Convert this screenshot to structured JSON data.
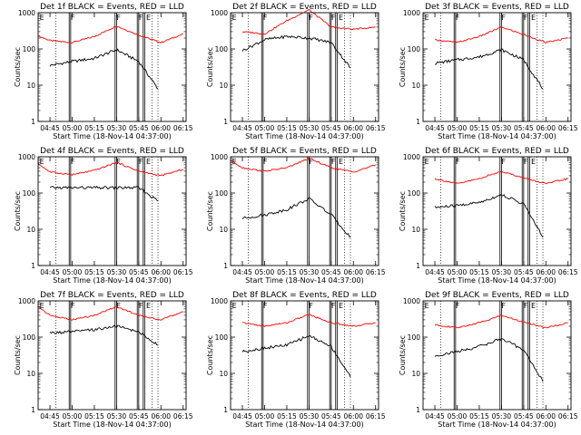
{
  "chart_data": [
    {
      "type": "line",
      "title": "Det 1f BLACK = Events, RED = LLD",
      "xlabel": "Start Time (18-Nov-14 04:37:00)",
      "ylabel": "Counts/sec",
      "ylim": [
        1,
        1000
      ],
      "yscale": "log",
      "xticks": [
        "04:45",
        "05:00",
        "05:15",
        "05:30",
        "05:45",
        "06:00",
        "06:15"
      ],
      "yticks": [
        "1",
        "10",
        "100",
        "1000"
      ],
      "segment_labels": [
        "E",
        "F",
        "F",
        "F",
        "E"
      ],
      "grid": false,
      "series": [
        {
          "color": "#ff0000",
          "values": [
            {
              "t": "04:37",
              "v": 230
            },
            {
              "t": "04:45",
              "v": 170
            },
            {
              "t": "05:00",
              "v": 150
            },
            {
              "t": "05:15",
              "v": 220
            },
            {
              "t": "05:30",
              "v": 430
            },
            {
              "t": "05:45",
              "v": 240
            },
            {
              "t": "06:00",
              "v": 150
            },
            {
              "t": "06:15",
              "v": 260
            }
          ]
        },
        {
          "color": "#000000",
          "values": [
            {
              "t": "04:45",
              "v": 35
            },
            {
              "t": "05:00",
              "v": 45
            },
            {
              "t": "05:15",
              "v": 55
            },
            {
              "t": "05:30",
              "v": 95
            },
            {
              "t": "05:45",
              "v": 45
            },
            {
              "t": "05:58",
              "v": 8
            }
          ]
        }
      ]
    },
    {
      "type": "line",
      "title": "Det 2f BLACK = Events, RED = LLD",
      "xlabel": "Start Time (18-Nov-14 04:37:00)",
      "ylabel": "Counts/sec",
      "ylim": [
        1,
        1000
      ],
      "yscale": "log",
      "xticks": [
        "04:45",
        "05:00",
        "05:15",
        "05:30",
        "05:45",
        "06:00",
        "06:15"
      ],
      "yticks": [
        "1",
        "10",
        "100",
        "1000"
      ],
      "segment_labels": [
        "E",
        "F",
        "F",
        "F",
        "E"
      ],
      "grid": false,
      "series": [
        {
          "color": "#ff0000",
          "values": [
            {
              "t": "04:45",
              "v": 300
            },
            {
              "t": "05:00",
              "v": 260
            },
            {
              "t": "05:15",
              "v": 600
            },
            {
              "t": "05:30",
              "v": 1200
            },
            {
              "t": "05:45",
              "v": 400
            },
            {
              "t": "06:00",
              "v": 350
            },
            {
              "t": "06:15",
              "v": 400
            }
          ]
        },
        {
          "color": "#000000",
          "values": [
            {
              "t": "04:45",
              "v": 90
            },
            {
              "t": "05:00",
              "v": 180
            },
            {
              "t": "05:15",
              "v": 220
            },
            {
              "t": "05:30",
              "v": 200
            },
            {
              "t": "05:45",
              "v": 150
            },
            {
              "t": "05:58",
              "v": 30
            }
          ]
        }
      ]
    },
    {
      "type": "line",
      "title": "Det 3f BLACK = Events, RED = LLD",
      "xlabel": "Start Time (18-Nov-14 04:37:00)",
      "ylabel": "Counts/sec",
      "ylim": [
        1,
        1000
      ],
      "yscale": "log",
      "xticks": [
        "04:45",
        "05:00",
        "05:15",
        "05:30",
        "05:45",
        "06:00",
        "06:15"
      ],
      "yticks": [
        "1",
        "10",
        "100",
        "1000"
      ],
      "segment_labels": [
        "E",
        "F",
        "F",
        "F",
        "E"
      ],
      "grid": false,
      "series": [
        {
          "color": "#ff0000",
          "values": [
            {
              "t": "04:45",
              "v": 180
            },
            {
              "t": "05:00",
              "v": 150
            },
            {
              "t": "05:15",
              "v": 220
            },
            {
              "t": "05:30",
              "v": 400
            },
            {
              "t": "05:45",
              "v": 250
            },
            {
              "t": "06:00",
              "v": 150
            },
            {
              "t": "06:15",
              "v": 200
            }
          ]
        },
        {
          "color": "#000000",
          "values": [
            {
              "t": "04:45",
              "v": 40
            },
            {
              "t": "05:00",
              "v": 50
            },
            {
              "t": "05:15",
              "v": 60
            },
            {
              "t": "05:30",
              "v": 95
            },
            {
              "t": "05:45",
              "v": 50
            },
            {
              "t": "05:58",
              "v": 8
            }
          ]
        }
      ]
    },
    {
      "type": "line",
      "title": "Det 4f BLACK = Events, RED = LLD",
      "xlabel": "Start Time (18-Nov-14 04:37:00)",
      "ylabel": "Counts/sec",
      "ylim": [
        1,
        1000
      ],
      "yscale": "log",
      "xticks": [
        "04:45",
        "05:00",
        "05:15",
        "05:30",
        "05:45",
        "06:00",
        "06:15"
      ],
      "yticks": [
        "1",
        "10",
        "100",
        "1000"
      ],
      "segment_labels": [
        "E",
        "F",
        "F",
        "F",
        "E"
      ],
      "grid": false,
      "series": [
        {
          "color": "#ff0000",
          "values": [
            {
              "t": "04:37",
              "v": 650
            },
            {
              "t": "04:45",
              "v": 380
            },
            {
              "t": "05:00",
              "v": 320
            },
            {
              "t": "05:15",
              "v": 420
            },
            {
              "t": "05:30",
              "v": 700
            },
            {
              "t": "05:45",
              "v": 400
            },
            {
              "t": "06:00",
              "v": 300
            },
            {
              "t": "06:15",
              "v": 450
            }
          ]
        },
        {
          "color": "#000000",
          "values": [
            {
              "t": "04:45",
              "v": 140
            },
            {
              "t": "05:00",
              "v": 140
            },
            {
              "t": "05:15",
              "v": 140
            },
            {
              "t": "05:30",
              "v": 140
            },
            {
              "t": "05:45",
              "v": 140
            },
            {
              "t": "05:58",
              "v": 60
            }
          ]
        }
      ]
    },
    {
      "type": "line",
      "title": "Det 5f BLACK = Events, RED = LLD",
      "xlabel": "Start Time (18-Nov-14 04:37:00)",
      "ylabel": "Counts/sec",
      "ylim": [
        1,
        1000
      ],
      "yscale": "log",
      "xticks": [
        "04:45",
        "05:00",
        "05:15",
        "05:30",
        "05:45",
        "06:00",
        "06:15"
      ],
      "yticks": [
        "1",
        "10",
        "100",
        "1000"
      ],
      "segment_labels": [
        "E",
        "F",
        "F",
        "F",
        "E"
      ],
      "grid": false,
      "series": [
        {
          "color": "#ff0000",
          "values": [
            {
              "t": "04:37",
              "v": 800
            },
            {
              "t": "04:45",
              "v": 500
            },
            {
              "t": "05:00",
              "v": 400
            },
            {
              "t": "05:15",
              "v": 500
            },
            {
              "t": "05:30",
              "v": 900
            },
            {
              "t": "05:45",
              "v": 500
            },
            {
              "t": "06:00",
              "v": 380
            },
            {
              "t": "06:15",
              "v": 600
            }
          ]
        },
        {
          "color": "#000000",
          "values": [
            {
              "t": "04:45",
              "v": 20
            },
            {
              "t": "05:00",
              "v": 25
            },
            {
              "t": "05:15",
              "v": 35
            },
            {
              "t": "05:30",
              "v": 70
            },
            {
              "t": "05:45",
              "v": 25
            },
            {
              "t": "05:58",
              "v": 6
            }
          ]
        }
      ]
    },
    {
      "type": "line",
      "title": "Det 6f BLACK = Events, RED = LLD",
      "xlabel": "Start Time (18-Nov-14 04:37:00)",
      "ylabel": "Counts/sec",
      "ylim": [
        1,
        1000
      ],
      "yscale": "log",
      "xticks": [
        "04:45",
        "05:00",
        "05:15",
        "05:30",
        "05:45",
        "06:00",
        "06:15"
      ],
      "yticks": [
        "1",
        "10",
        "100",
        "1000"
      ],
      "segment_labels": [
        "E",
        "F",
        "F",
        "F",
        "E"
      ],
      "grid": false,
      "series": [
        {
          "color": "#ff0000",
          "values": [
            {
              "t": "04:45",
              "v": 250
            },
            {
              "t": "05:00",
              "v": 180
            },
            {
              "t": "05:15",
              "v": 250
            },
            {
              "t": "05:30",
              "v": 400
            },
            {
              "t": "05:45",
              "v": 260
            },
            {
              "t": "06:00",
              "v": 180
            },
            {
              "t": "06:15",
              "v": 250
            }
          ]
        },
        {
          "color": "#000000",
          "values": [
            {
              "t": "04:45",
              "v": 40
            },
            {
              "t": "05:00",
              "v": 45
            },
            {
              "t": "05:15",
              "v": 55
            },
            {
              "t": "05:30",
              "v": 90
            },
            {
              "t": "05:45",
              "v": 50
            },
            {
              "t": "05:58",
              "v": 6
            }
          ]
        }
      ]
    },
    {
      "type": "line",
      "title": "Det 7f BLACK = Events, RED = LLD",
      "xlabel": "Start Time (18-Nov-14 04:37:00)",
      "ylabel": "Counts/sec",
      "ylim": [
        1,
        1000
      ],
      "yscale": "log",
      "xticks": [
        "04:45",
        "05:00",
        "05:15",
        "05:30",
        "05:45",
        "06:00",
        "06:15"
      ],
      "yticks": [
        "1",
        "10",
        "100",
        "1000"
      ],
      "segment_labels": [
        "E",
        "F",
        "F",
        "F",
        "E"
      ],
      "grid": false,
      "series": [
        {
          "color": "#ff0000",
          "values": [
            {
              "t": "04:37",
              "v": 700
            },
            {
              "t": "04:45",
              "v": 400
            },
            {
              "t": "05:00",
              "v": 300
            },
            {
              "t": "05:15",
              "v": 400
            },
            {
              "t": "05:30",
              "v": 700
            },
            {
              "t": "05:45",
              "v": 400
            },
            {
              "t": "06:00",
              "v": 300
            },
            {
              "t": "06:15",
              "v": 500
            }
          ]
        },
        {
          "color": "#000000",
          "values": [
            {
              "t": "04:45",
              "v": 130
            },
            {
              "t": "05:00",
              "v": 140
            },
            {
              "t": "05:15",
              "v": 160
            },
            {
              "t": "05:30",
              "v": 200
            },
            {
              "t": "05:45",
              "v": 140
            },
            {
              "t": "05:58",
              "v": 60
            }
          ]
        }
      ]
    },
    {
      "type": "line",
      "title": "Det 8f BLACK = Events, RED = LLD",
      "xlabel": "Start Time (18-Nov-14 04:37:00)",
      "ylabel": "Counts/sec",
      "ylim": [
        1,
        1000
      ],
      "yscale": "log",
      "xticks": [
        "04:45",
        "05:00",
        "05:15",
        "05:30",
        "05:45",
        "06:00",
        "06:15"
      ],
      "yticks": [
        "1",
        "10",
        "100",
        "1000"
      ],
      "segment_labels": [
        "E",
        "F",
        "F",
        "F",
        "E"
      ],
      "grid": false,
      "series": [
        {
          "color": "#ff0000",
          "values": [
            {
              "t": "04:45",
              "v": 250
            },
            {
              "t": "05:00",
              "v": 200
            },
            {
              "t": "05:15",
              "v": 250
            },
            {
              "t": "05:30",
              "v": 420
            },
            {
              "t": "05:45",
              "v": 250
            },
            {
              "t": "06:00",
              "v": 200
            },
            {
              "t": "06:15",
              "v": 250
            }
          ]
        },
        {
          "color": "#000000",
          "values": [
            {
              "t": "04:45",
              "v": 40
            },
            {
              "t": "05:00",
              "v": 50
            },
            {
              "t": "05:15",
              "v": 60
            },
            {
              "t": "05:30",
              "v": 110
            },
            {
              "t": "05:45",
              "v": 55
            },
            {
              "t": "05:58",
              "v": 8
            }
          ]
        }
      ]
    },
    {
      "type": "line",
      "title": "Det 9f BLACK = Events, RED = LLD",
      "xlabel": "Start Time (18-Nov-14 04:37:00)",
      "ylabel": "Counts/sec",
      "ylim": [
        1,
        1000
      ],
      "yscale": "log",
      "xticks": [
        "04:45",
        "05:00",
        "05:15",
        "05:30",
        "05:45",
        "06:00",
        "06:15"
      ],
      "yticks": [
        "1",
        "10",
        "100",
        "1000"
      ],
      "segment_labels": [
        "E",
        "F",
        "F",
        "F",
        "E"
      ],
      "grid": false,
      "series": [
        {
          "color": "#ff0000",
          "values": [
            {
              "t": "04:45",
              "v": 220
            },
            {
              "t": "05:00",
              "v": 180
            },
            {
              "t": "05:15",
              "v": 250
            },
            {
              "t": "05:30",
              "v": 400
            },
            {
              "t": "05:45",
              "v": 260
            },
            {
              "t": "06:00",
              "v": 180
            },
            {
              "t": "06:15",
              "v": 250
            }
          ]
        },
        {
          "color": "#000000",
          "values": [
            {
              "t": "04:45",
              "v": 30
            },
            {
              "t": "05:00",
              "v": 40
            },
            {
              "t": "05:15",
              "v": 55
            },
            {
              "t": "05:30",
              "v": 90
            },
            {
              "t": "05:45",
              "v": 45
            },
            {
              "t": "05:58",
              "v": 6
            }
          ]
        }
      ]
    }
  ]
}
